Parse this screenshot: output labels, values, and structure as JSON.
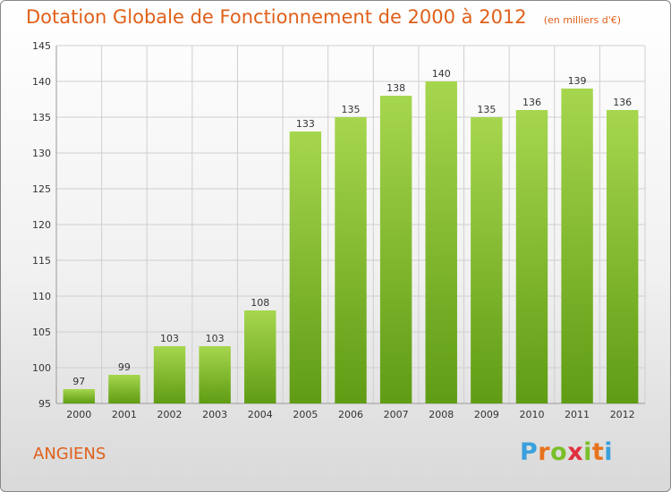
{
  "header": {
    "title": "Dotation Globale de Fonctionnement de 2000 à 2012",
    "unit": "(en milliers d'€)"
  },
  "footer": {
    "commune": "ANGIENS",
    "logo_letters": [
      "P",
      "r",
      "o",
      "x",
      "i",
      "t",
      "i"
    ],
    "logo_colors": [
      "#3aa0dd",
      "#e8721c",
      "#7bbf2a",
      "#e02f3e",
      "#7bbf2a",
      "#e8721c",
      "#3aa0dd"
    ]
  },
  "colors": {
    "bar_light": "#a6d64e",
    "bar_dark": "#5f9c14",
    "grid": "#cfcfcf",
    "axis_text": "#333333",
    "title": "#e0601a"
  },
  "chart_data": {
    "type": "bar",
    "categories": [
      "2000",
      "2001",
      "2002",
      "2003",
      "2004",
      "2005",
      "2006",
      "2007",
      "2008",
      "2009",
      "2010",
      "2011",
      "2012"
    ],
    "values": [
      97,
      99,
      103,
      103,
      108,
      133,
      135,
      138,
      140,
      135,
      136,
      139,
      136
    ],
    "title": "Dotation Globale de Fonctionnement de 2000 à 2012",
    "xlabel": "",
    "ylabel": "",
    "ylim": [
      95,
      145
    ],
    "yticks": [
      95,
      100,
      105,
      110,
      115,
      120,
      125,
      130,
      135,
      140,
      145
    ],
    "grid": true
  }
}
